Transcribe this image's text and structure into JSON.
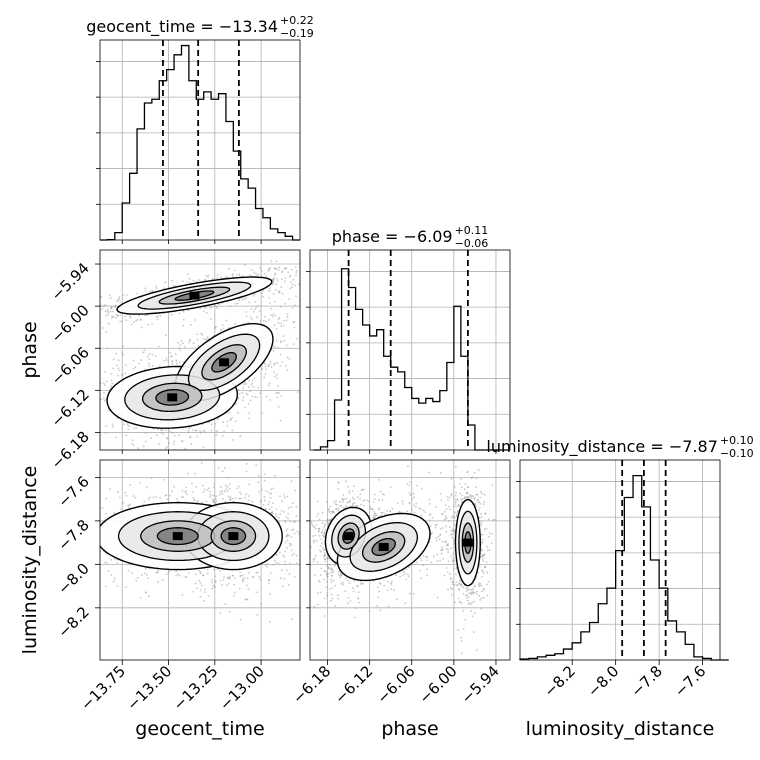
{
  "chart_data": [
    {
      "type": "histogram",
      "panel": "geocent_time",
      "title": {
        "main": "geocent_time = −13.34",
        "sup": "+0.22",
        "sub": "−0.19"
      },
      "x": [
        -13.85,
        -13.81,
        -13.77,
        -13.73,
        -13.69,
        -13.65,
        -13.61,
        -13.57,
        -13.53,
        -13.49,
        -13.45,
        -13.41,
        -13.37,
        -13.33,
        -13.29,
        -13.25,
        -13.21,
        -13.17,
        -13.13,
        -13.09,
        -13.05,
        -13.01,
        -12.97,
        -12.93,
        -12.89,
        -12.85,
        -12.81
      ],
      "values": [
        0,
        1,
        20,
        100,
        180,
        300,
        370,
        380,
        430,
        460,
        500,
        525,
        430,
        380,
        400,
        380,
        395,
        320,
        240,
        165,
        140,
        85,
        60,
        30,
        20,
        10,
        0
      ],
      "quantiles": [
        -13.53,
        -13.34,
        -13.12
      ],
      "xlim": [
        -13.87,
        -12.79
      ],
      "ylim": [
        0,
        540
      ]
    },
    {
      "type": "histogram",
      "panel": "phase",
      "title": {
        "main": "phase = −6.09",
        "sup": "+0.11",
        "sub": "−0.06"
      },
      "x": [
        -6.195,
        -6.185,
        -6.175,
        -6.165,
        -6.155,
        -6.145,
        -6.135,
        -6.125,
        -6.115,
        -6.105,
        -6.095,
        -6.085,
        -6.075,
        -6.065,
        -6.055,
        -6.045,
        -6.035,
        -6.025,
        -6.015,
        -6.005,
        -5.995,
        -5.985,
        -5.975,
        -5.965,
        -5.955,
        -5.945,
        -5.935,
        -5.925
      ],
      "values": [
        0,
        10,
        30,
        160,
        580,
        520,
        450,
        400,
        365,
        385,
        300,
        265,
        250,
        200,
        165,
        150,
        165,
        155,
        190,
        280,
        460,
        300,
        80,
        0,
        0,
        0,
        0,
        0
      ],
      "quantiles": [
        -6.15,
        -6.09,
        -5.98
      ],
      "xlim": [
        -6.205,
        -5.92
      ],
      "ylim": [
        0,
        640
      ]
    },
    {
      "type": "histogram",
      "panel": "luminosity_distance",
      "title": {
        "main": "luminosity_distance = −7.87",
        "sup": "+0.10",
        "sub": "−0.10"
      },
      "x": [
        -8.42,
        -8.38,
        -8.34,
        -8.3,
        -8.26,
        -8.22,
        -8.18,
        -8.14,
        -8.1,
        -8.06,
        -8.02,
        -7.98,
        -7.94,
        -7.9,
        -7.86,
        -7.82,
        -7.78,
        -7.74,
        -7.7,
        -7.66,
        -7.62,
        -7.58,
        -7.54,
        -7.5
      ],
      "values": [
        3,
        5,
        10,
        15,
        20,
        35,
        55,
        90,
        120,
        180,
        230,
        350,
        520,
        590,
        490,
        320,
        230,
        125,
        90,
        50,
        10,
        5,
        0,
        0
      ],
      "quantiles": [
        -7.97,
        -7.87,
        -7.77
      ],
      "xlim": [
        -8.44,
        -7.52
      ],
      "ylim": [
        0,
        640
      ]
    },
    {
      "type": "contour_scatter",
      "panel": "phase vs geocent_time",
      "x_param": "geocent_time",
      "y_param": "phase",
      "xlim": [
        -13.87,
        -12.79
      ],
      "ylim": [
        -6.205,
        -5.92
      ],
      "modes": [
        {
          "cx": -13.36,
          "cy": -5.985,
          "sx": 0.19,
          "sy": 0.012,
          "rho": 0.75
        },
        {
          "cx": -13.48,
          "cy": -6.13,
          "sx": 0.16,
          "sy": 0.02,
          "rho": 0.1
        },
        {
          "cx": -13.2,
          "cy": -6.08,
          "sx": 0.12,
          "sy": 0.025,
          "rho": 0.6
        }
      ]
    },
    {
      "type": "contour_scatter",
      "panel": "luminosity_distance vs geocent_time",
      "x_param": "geocent_time",
      "y_param": "luminosity_distance",
      "xlim": [
        -13.87,
        -12.79
      ],
      "ylim": [
        -8.44,
        -7.52
      ],
      "modes": [
        {
          "cx": -13.45,
          "cy": -7.87,
          "sx": 0.2,
          "sy": 0.07,
          "rho": 0.0
        },
        {
          "cx": -13.15,
          "cy": -7.87,
          "sx": 0.12,
          "sy": 0.07,
          "rho": 0.0
        }
      ]
    },
    {
      "type": "contour_scatter",
      "panel": "luminosity_distance vs phase",
      "x_param": "phase",
      "y_param": "luminosity_distance",
      "xlim": [
        -6.205,
        -5.92
      ],
      "ylim": [
        -8.44,
        -7.52
      ],
      "modes": [
        {
          "cx": -6.15,
          "cy": -7.87,
          "sx": 0.015,
          "sy": 0.06,
          "rho": 0.2
        },
        {
          "cx": -6.1,
          "cy": -7.92,
          "sx": 0.03,
          "sy": 0.07,
          "rho": 0.4
        },
        {
          "cx": -5.98,
          "cy": -7.9,
          "sx": 0.008,
          "sy": 0.09,
          "rho": 0.0
        }
      ]
    }
  ],
  "axes": {
    "geocent_time": {
      "label": "geocent_time",
      "ticks": [
        -13.75,
        -13.5,
        -13.25,
        -13.0
      ],
      "tick_labels": [
        "−13.75",
        "−13.50",
        "−13.25",
        "−13.00"
      ]
    },
    "phase": {
      "label": "phase",
      "ticks": [
        -6.18,
        -6.12,
        -6.06,
        -6.0,
        -5.94
      ],
      "tick_labels": [
        "−6.18",
        "−6.12",
        "−6.06",
        "−6.00",
        "−5.94"
      ]
    },
    "luminosity_distance": {
      "label": "luminosity_distance",
      "ticks": [
        -8.2,
        -8.0,
        -7.8,
        -7.6
      ],
      "tick_labels": [
        "−8.2",
        "−8.0",
        "−7.8",
        "−7.6"
      ]
    }
  },
  "style": {
    "line_color": "#000000",
    "grid_color": "#b0b0b0",
    "scatter_color": "#9a9a9a"
  }
}
